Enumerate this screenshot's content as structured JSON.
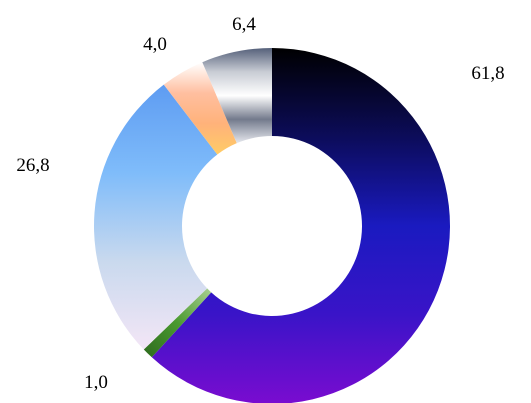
{
  "chart_data": {
    "type": "pie",
    "donut": true,
    "title": "",
    "legend": "none",
    "start_angle_deg": 0,
    "direction": "clockwise",
    "slices": [
      {
        "value": 61.8,
        "label": "61,8",
        "colors": [
          "#000000",
          "#0c0c5a",
          "#1a1ac0",
          "#3a14c8",
          "#7a0cd0"
        ]
      },
      {
        "value": 1.0,
        "label": "1,0",
        "colors": [
          "#2e6b1e",
          "#4a9a30",
          "#a8d090"
        ]
      },
      {
        "value": 26.8,
        "label": "26,8",
        "colors": [
          "#f3e6f6",
          "#c9d9ee",
          "#7fbcfa",
          "#5e9cf2"
        ]
      },
      {
        "value": 4.0,
        "label": "4,0",
        "colors": [
          "#ffffff",
          "#ffbfa0",
          "#ffb27a",
          "#ffcc66"
        ]
      },
      {
        "value": 6.4,
        "label": "6,4",
        "colors": [
          "#55607a",
          "#c8ccd4",
          "#ffffff",
          "#737a8c",
          "#e6e8ee"
        ]
      }
    ]
  }
}
